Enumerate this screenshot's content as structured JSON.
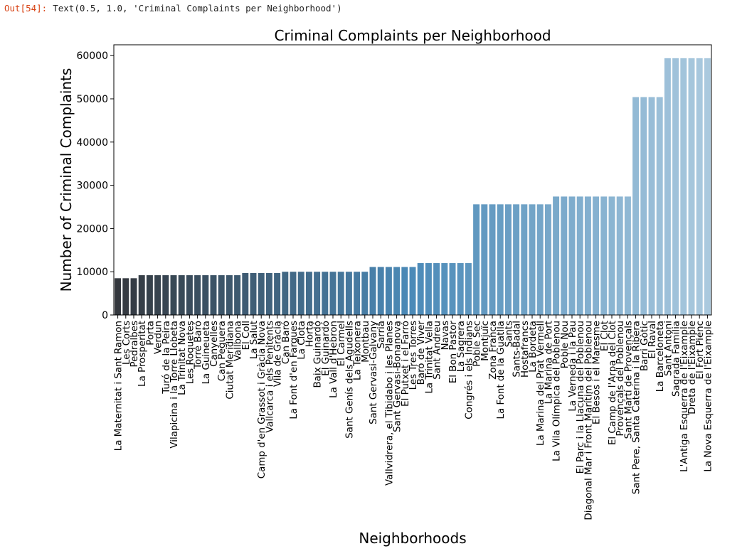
{
  "output": {
    "prompt": "Out[54]:",
    "text": "Text(0.5, 1.0, 'Criminal Complaints per Neighborhood')"
  },
  "chart_data": {
    "type": "bar",
    "title": "Criminal Complaints per Neighborhood",
    "xlabel": "Neighborhoods",
    "ylabel": "Number of Criminal Complaints",
    "ylim": [
      0,
      62500
    ],
    "yticks": [
      0,
      10000,
      20000,
      30000,
      40000,
      50000,
      60000
    ],
    "grid": false,
    "palette": "blue_d (dark to light)",
    "color_start": "#34383e",
    "color_mid": "#4b8ab8",
    "color_end": "#aac9de",
    "categories": [
      "La Maternitat i Sant Ramon",
      "Les Corts",
      "Pedralbes",
      "La Prosperitat",
      "Porta",
      "Verdun",
      "Turó de la Peira",
      "Vilapicina i la Torre Llobeta",
      "La Trinitat Nova",
      "Les Roquetes",
      "Torre Baró",
      "La Guineueta",
      "Canyelles",
      "Can Peguera",
      "Ciutat Meridiana",
      "Vallbona",
      "El Coll",
      "La Salut",
      "Camp d'en Grassot i Gràcia Nova",
      "Vallcarca i els Penitents",
      "Vila de Gràcia",
      "Can Baró",
      "La Font d'en Fargues",
      "La Clota",
      "Horta",
      "Baix Guinardó",
      "El Guinardó",
      "La Vall d'Hebron",
      "El Carmel",
      "Sant Genís dels Agudells",
      "La Teixonera",
      "Montbau",
      "Sant Gervasi-Galvany",
      "Sarrià",
      "Vallvidrera, el Tibidabo i les Planes",
      "Sant Gervasi-Bonanova",
      "El Putxet i el Farró",
      "Les Tres Torres",
      "Baró de Viver",
      "La Trinitat Vella",
      "Sant Andreu",
      "Navas",
      "El Bon Pastor",
      "La Sagrera",
      "Congrés i els Indians",
      "Poble Sec",
      "Montjuïc",
      "Zona Franca",
      "La Font de la Guatlla",
      "Sants",
      "Sants-Badal",
      "Hostafrancs",
      "La Bordeta",
      "La Marina del Prat Vermell",
      "La Marina de Port",
      "La Vila Olímpica del Poblenou",
      "Poble Nou",
      "La Verneda i la Pau",
      "El Parc i la Llacuna del Poblenou",
      "Diagonal Mar i Front Marítim del Poblenou",
      "El Besòs i el Maresme",
      "El Clot",
      "El Camp de l'Arpa del Clot",
      "Provençals del Poblenou",
      "Sant Martí de Provençals",
      "Sant Pere, Santa Caterina i la Ribera",
      "Barri Gòtic",
      "El Raval",
      "La Barceloneta",
      "Sant Antoni",
      "Sagrada Família",
      "L'Antiga Esquerra de l'Eixample",
      "Dreta de l'Eixample",
      "El Fort Pienc",
      "La Nova Esquerra de l'Eixample"
    ],
    "values": [
      8500,
      8500,
      8500,
      9200,
      9200,
      9200,
      9200,
      9200,
      9200,
      9200,
      9200,
      9200,
      9200,
      9200,
      9200,
      9200,
      9700,
      9700,
      9700,
      9700,
      9700,
      10000,
      10000,
      10000,
      10000,
      10000,
      10000,
      10000,
      10000,
      10000,
      10000,
      10000,
      11100,
      11100,
      11100,
      11100,
      11100,
      11100,
      12000,
      12000,
      12000,
      12000,
      12000,
      12000,
      12000,
      25600,
      25600,
      25600,
      25600,
      25600,
      25600,
      25600,
      25600,
      25600,
      25600,
      27400,
      27400,
      27400,
      27400,
      27400,
      27400,
      27400,
      27400,
      27400,
      27400,
      50400,
      50400,
      50400,
      50400,
      59400,
      59400,
      59400,
      59400,
      59400,
      59400
    ]
  }
}
